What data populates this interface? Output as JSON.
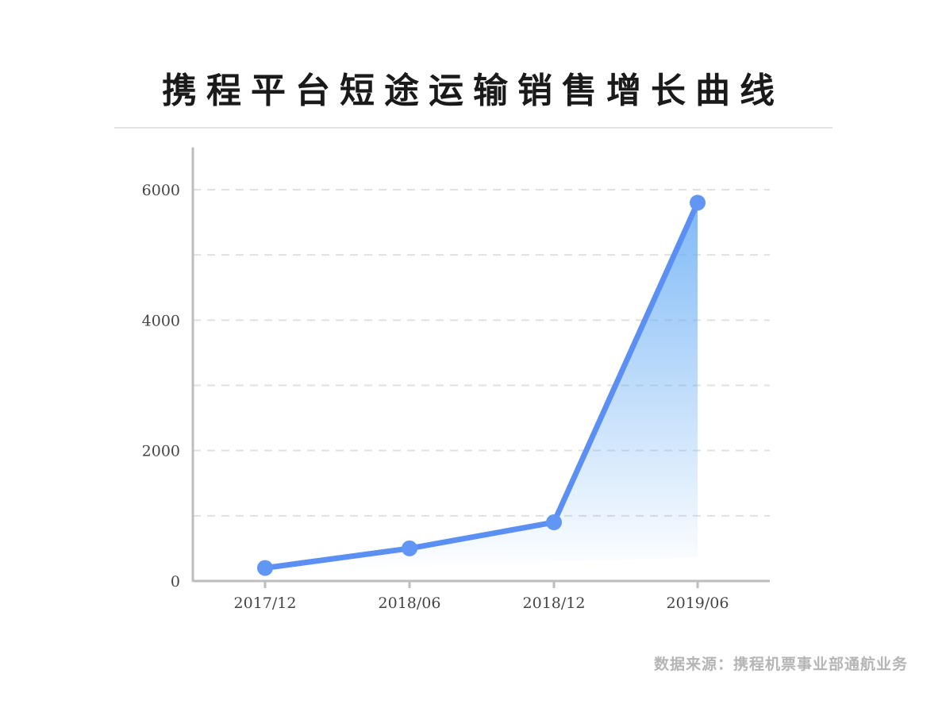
{
  "title": "携程平台短途运输销售增长曲线",
  "source": "数据来源：携程机票事业部通航业务",
  "chart_data": {
    "type": "area",
    "title": "携程平台短途运输销售增长曲线",
    "categories": [
      "2017/12",
      "2018/06",
      "2018/12",
      "2019/06"
    ],
    "series": [
      {
        "values": [
          200,
          500,
          900,
          5800
        ]
      }
    ],
    "ylim": [
      0,
      6650
    ],
    "yticks": [
      0,
      2000,
      4000,
      6000
    ],
    "grid_lines": [
      1000,
      2000,
      3000,
      4000,
      5000,
      6000
    ],
    "grid": true,
    "xlabel": "",
    "ylabel": "",
    "colors": {
      "line": "#5b8ff4",
      "point": "#6196f5",
      "fill": "#6aaef5",
      "axis": "#bdbdbd",
      "grid": "#e0e0e0",
      "tick_text": "#444444"
    }
  }
}
